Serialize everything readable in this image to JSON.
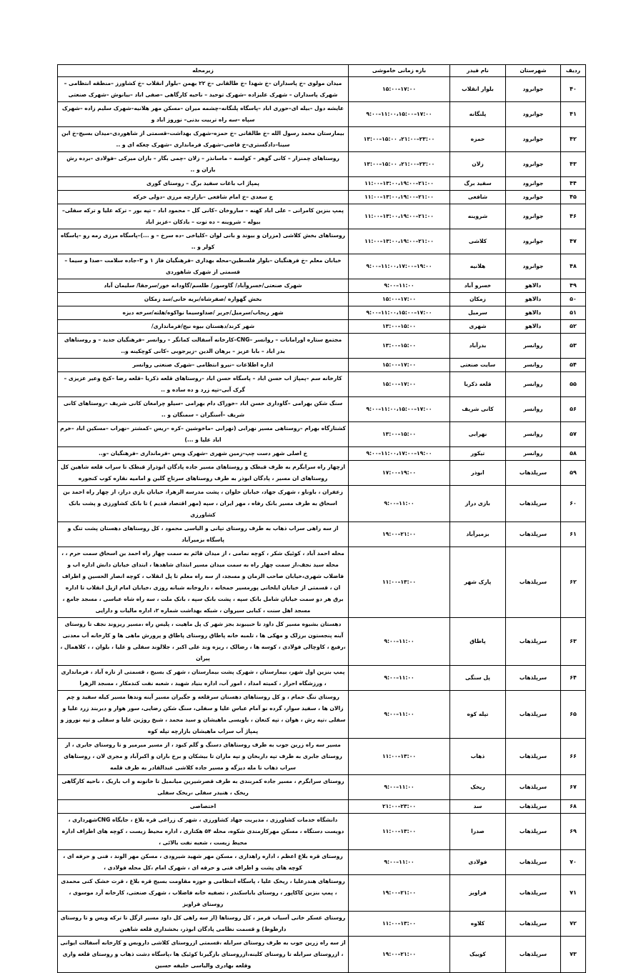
{
  "headers": {
    "index": "ردیف",
    "city": "شهرستان",
    "feeder": "نام فیدر",
    "time": "بازه زمانی خاموشی",
    "area": "زیرمحله"
  },
  "rows": [
    {
      "index": "۴۰",
      "city": "جوانرود",
      "feeder": "بلوار انقلاب",
      "time": "۱۵:۰۰–۱۷:۰۰",
      "area": "میدان مولوی –خ پاسداران –خ شهدا –خ طالقانی –خ ۲۲ بهمن –بلوار انقلاب –خ کشاورز –منطقه انتظامی –شهرک پاسداران – شهرک علیزاده –شهرک توحید – ناحیه کارگاهی –صفی اباد –بیانوش –شهرک صنعتی"
    },
    {
      "index": "۴۱",
      "city": "جوانرود",
      "feeder": "پلنگانه",
      "time": "۹:۰۰–۱۱:۰۰،۱۵:۰۰–۱۷:۰۰",
      "area": "عایشه دول –بیله ای–حوری اباد –پاسگاه پلنگانه–چشمه میران –مسکن مهر هلانیه–شهرک سلیم زاده –شهرک سپاه –سه راه تربیت بدنی– نوروز اباد و"
    },
    {
      "index": "۴۲",
      "city": "جوانرود",
      "feeder": "حمزه",
      "time": "۱۳:۰۰–۱۵:۰۰ ،۲۱:۰۰–۲۳:۰۰",
      "area": "بیمارستان محمد رسول الله –خ طالقانی –خ حمزه–شهرک بهداشت–قسمتی از شاهوردی–میدان بسیج–خ ابن سینا–دادگستری–خ قاضی–شهرک فرمانداری –شهرک چغکه ای و .."
    },
    {
      "index": "۴۳",
      "city": "جوانرود",
      "feeder": "زلان",
      "time": "۱۳:۰۰–۱۵:۰۰ ،۲۱:۰۰–۲۳:۰۰",
      "area": "روستاهای چمنزار – کانی گوهر – کولسه – ماسانذر – زلان –چمی بگار – بازان میرکی –فولادی –برده رش بازان و .."
    },
    {
      "index": "۴۴",
      "city": "جوانرود",
      "feeder": "سفید برگ",
      "time": "۱۱:۰۰–۱۳:۰۰،۱۹:۰۰–۲۱:۰۰",
      "area": "پمپاژ اب باغات سفید برگ – روستای گوری"
    },
    {
      "index": "۴۵",
      "city": "جوانرود",
      "feeder": "شافعی",
      "time": "۱۱:۰۰–۱۳:۰۰،۱۹:۰۰–۲۱:۰۰",
      "area": "خ سعدی –خ امام شافعی –بازارچه مرزی –دولی خرکه"
    },
    {
      "index": "۴۶",
      "city": "جوانرود",
      "feeder": "شروینه",
      "time": "۱۱:۰۰–۱۳:۰۰،۱۹:۰۰–۲۱:۰۰",
      "area": "پمپ بنزین کامرانی – علی اباد کهنه – ساروخان –کانی گل – محمود اباد – تپه بور – ترکه علیا و ترکه سفلی– بیوله – شروینه – ده توت – بادکان –عزیز اباد"
    },
    {
      "index": "۴۷",
      "city": "جوانرود",
      "feeder": "کلاشی",
      "time": "۱۱:۰۰–۱۳:۰۰،۱۹:۰۰–۲۱:۰۰",
      "area": "روستاهای بخش کلاشی (مزران و بیوند و بانی لوان –کلیاخی –ده سرخ – و ...)–پاسگاه مرزی رمه رو –پاسگاه کولر و .."
    },
    {
      "index": "۴۸",
      "city": "جوانرود",
      "feeder": "هلانیه",
      "time": "۹:۰۰–۱۱:۰۰،۱۷:۰۰–۱۹:۰۰",
      "area": "خیابان معلم –خ فرهنگیان –بلوار فلسطین–محله بهداری –فرهنگیان فاز ۱ و ۳–جاده سلامت –صدا و سیما –قسمتی از شهرک شاهوردی"
    },
    {
      "index": "۴۹",
      "city": "دالاهو",
      "feeder": "خسرو آباد",
      "time": "۹:۰۰–۱۱:۰۰",
      "area": "شهرک صنعتی/خسروآباد/ گاوسور/ طلسم/گاودانه خور/سرجقا/ سلیمان آباد"
    },
    {
      "index": "۵۰",
      "city": "دالاهو",
      "feeder": "زمکان",
      "time": "۱۵:۰۰–۱۷:۰۰",
      "area": "بخش گهواره /صفرشاه/بریه خانی/سد زمکان"
    },
    {
      "index": "۵۱",
      "city": "دالاهو",
      "feeder": "سرمیل",
      "time": "۹:۰۰–۱۱:۰۰،۱۵:۰۰–۱۷:۰۰",
      "area": "شهر ریجاب/سرمیل/جریر /صداوسیما نواکوه/هلته/سرخه دیزه"
    },
    {
      "index": "۵۲",
      "city": "دالاهو",
      "feeder": "شهری",
      "time": "۱۳:۰۰–۱۵:۰۰",
      "area": "شهر کرند/دهستان بیوه نیج/فرمانداری/"
    },
    {
      "index": "۵۳",
      "city": "روانسر",
      "feeder": "بدرآباد",
      "time": "۱۳:۰۰–۱۵:۰۰",
      "area": "مجتمع ستاره اورامانات – روانسر –CNG–کارخانه آسفالت کمانگر – روانسر –فرهنگیان جدید – و روستاهای بدر اباد – بابا عزیز – برهان الدین –زیرجوبی –کانی کوچکینه و.."
    },
    {
      "index": "۵۴",
      "city": "روانسر",
      "feeder": "سایت صنعتی",
      "time": "۱۵:۰۰–۱۷:۰۰",
      "area": "اداره اطلاعات –نیرو انتظامی –شهرک صنعتی روانسر"
    },
    {
      "index": "۵۵",
      "city": "روانسر",
      "feeder": "قلعه ذکریا",
      "time": "۱۵:۰۰–۱۷:۰۰",
      "area": "کارخانه سم –پمپاژ اب حسن اباد – پاسگاه حسن اباد –روستاهای قلعه ذکریا –قلعه رضا –کیخ وعیر عزیزی –گرک آبی–تپه زرد و ده ساده و .."
    },
    {
      "index": "۵۶",
      "city": "روانسر",
      "feeder": "کانی شریف",
      "time": "۹:۰۰–۱۱:۰۰،۱۵:۰۰–۱۷:۰۰",
      "area": "سنگ شکن بهرامی –گاوداری حسن اباد –خوراک دام بهرامی –سیلو چرامغان کانی شریف –روستاهای کانی شریف –آسنگران – سمنگان و .."
    },
    {
      "index": "۵۷",
      "city": "روانسر",
      "feeder": "نهرابی",
      "time": "۱۳:۰۰–۱۵:۰۰",
      "area": "کشتارگاه بهرام –روستاهی مسیر نهرابی (نهرابی –ماخوشین –کره –ریس –کمشتر –نهراب –مسکین اباد –خرم اباد علیا و ...)"
    },
    {
      "index": "۵۸",
      "city": "روانسر",
      "feeder": "تیکور",
      "time": "۹:۰۰–۱۱:۰۰،۱۷:۰۰–۱۹:۰۰",
      "area": "خ اصلی شهر دست چپ–زمین شهری –شهرک ویس –فرمانداری –فرهنگیان –و.."
    },
    {
      "index": "۵۹",
      "city": "سرپلذهاب",
      "feeder": "ابوذر",
      "time": "۱۷:۰۰–۱۹:۰۰",
      "area": "ازچهار راه سرابگرم به طرف قبطک و روستاهای مسیر جاده پادگان ابوذراز قبطک تا سراب قلعه شاهین کل روستاهای ان مسیر ، پادگان ابوذر به طرف روستاهای سرتاج گلین و امامیه نقاره کوب کنجوره"
    },
    {
      "index": "۶۰",
      "city": "سرپلذهاب",
      "feeder": "بازی دراز",
      "time": "۹:۰۰–۱۱:۰۰",
      "area": "زعفران ، باوناو ، شهرک جهاد، خیابان حلوان ، پشت مدرسه الزهرا، خیابان بازی دراز، از چهار راه احمد بن اسحاق به طرف مسیر بانک رفاه ، مهر ایران ، سپه (مهر اقتصاد قدیم ) تا بانک کشاورزی و پشت بانک کشاورزی"
    },
    {
      "index": "۶۱",
      "city": "سرپلذهاب",
      "feeder": "بزمیرآباد",
      "time": "۱۹:۰۰–۲۱:۰۰",
      "area": "از سه راهی سراب ذهاب به طرف روستای تپانی و الیاسی محمود ، کل روستاهای دهستان پشت تنگ و پاسگاه بزمیرآباد"
    },
    {
      "index": "۶۲",
      "city": "سرپلذهاب",
      "feeder": "پارک شهر",
      "time": "۱۱:۰۰–۱۳:۰۰",
      "area": "محله احمد آباد ، کوئیک شکر ، کوچه نمامی ، از میدان قائم به سمت چهار راه احمد بن اسحاق سمت حرم ، ، محله سید نجف،از سمت چهار راه به سمت میدان مسیر ابتدای شاهدها ، ابتدای خیابان دانش اداره اب و فاضلاب شهری،خیابان صاحب الزمان و مسجد، از سه راه معلم تا پل انقلاب ، کوچه انصار الحسین و اطراف ان ، قسمتی از خیابان ایلخانی پورمسیر جمخانه ، داروخانه شبانه روزی ،خیابان امام ازپل انقلاب تا اداره برق هر دو سمت خیابان شامل بانک سپه ، پشت بانک سپه ، بانک ملت ، سه راه شاه عباسی ، مسجد جامع ، مسجد اهل سنت ، کبابی سیروان ، شبکه بهداشت شماره ۲، اداره مالیات و دارایی"
    },
    {
      "index": "۶۳",
      "city": "سرپلذهاب",
      "feeder": "پاطاق",
      "time": "۹:۰۰–۱۱:۰۰",
      "area": "دهستان بشیوه مسیر کل داود تا حبیبوند بجز شهر ک پل ماهیت ، پلیس راه ،مسیر ریزوند نجف تا روستای آینه پنجستون برزلک و مهکی ها ، تلمبه خانه پاطاق روستای پاطاق و پرورش ماهی ها و کارخانه آب معدنی ،رفیع ، کاوچالی فولادی ، کوسه ها ، رضالک ، ریزه وند علی اکبر ، جلالوند سفلی و علیا ، بلوان ، ، کلاهمال ، پیران"
    },
    {
      "index": "۶۴",
      "city": "سرپلذهاب",
      "feeder": "پل سنگی",
      "time": "۹:۰۰–۱۱:۰۰",
      "area": "پمپ بنزین اول شهر، بیمارستان ، شهرک پشت بیمارستان ، شهر ک بسیج ، قسمتی از تازه آباد ، فرمانداری ، ورزشگاه احرار ، کمیته امداد ، امور آب، اداره بنیاد شهید ، شعبه نفت کندمکار ، مسجد الزهرا"
    },
    {
      "index": "۶۵",
      "city": "سرپلذهاب",
      "feeder": "تپله کوه",
      "time": "۹:۰۰–۱۱:۰۰",
      "area": "روستای تنگ حمام ، و کل روستاهای دهستان سرقلعه و جگیران مسیر آینه وندها مسیر کیله سفید و چم زالان ها ، سفید سوار، گرده نو آمام عباس علیا و سفلی، سنگ شکن رضایی، سور هوار و دیربند زرد علیا و سفلی ،تپه رش ، هوان ، تپه کنعان ، باویسی ماهیشان و سید محمد ، شیخ روژین علیا و سفلی و تپه نوروز و پمپاژ آب سراب ماهیشان بازارچه تپله کوه"
    },
    {
      "index": "۶۶",
      "city": "سرپلذهاب",
      "feeder": "ذهاب",
      "time": "۱۱:۰۰–۱۳:۰۰",
      "area": "مسیر سه راه زرین جوب به طرف روستاهای دسنگ و گلم کبود ، از مسیر میرمیر و تا روستای جابری ، از روستای جابری به طرف تپه داربخان و تپه ماران تا بیشکان و برخ باران و اکبرآباد و مجری لان ، روستاهای سراب ذهاب تا مله دیزگه و مسیر جاده کلاشی عبدالقادر به طرف قلمه"
    },
    {
      "index": "۶۷",
      "city": "سرپلذهاب",
      "feeder": "ریخک",
      "time": "۹:۰۰–۱۱:۰۰",
      "area": "روستای سرابگرم ، مسیر جاده کمربندی به طرف قصرشیرین میانمیل تا خانونه و اب باریک ، ناحیه کارگاهی ریخک ، هنیدر سفلی ،ریخک سفلی"
    },
    {
      "index": "۶۸",
      "city": "سرپلذهاب",
      "feeder": "سد",
      "time": "۲۱:۰۰–۲۳:۰۰",
      "area": "اختصاصی"
    },
    {
      "index": "۶۹",
      "city": "سرپلذهاب",
      "feeder": "صدرا",
      "time": "۱۱:۰۰–۱۳:۰۰",
      "area": "دانشگاه خدمات کشاورزی ، مدیریت جهاد کشاورزی ، شهر ک زراعی قره بلاغ ، جایگاه CNGشهرداری ، دویست دستگاه ، مسکن مهرکارمندی شکوه، محله ۵۴ هکتاری ، اداره محیط زیست ، کوچه های اطراف اداره محیط زیست ، شعبه نفت بالائی ،"
    },
    {
      "index": "۷۰",
      "city": "سرپلذهاب",
      "feeder": "فولادی",
      "time": "۹:۰۰–۱۱:۰۰",
      "area": "روستای قره بلاغ اعظم ، اداره راهداری ، مسکن مهر شهید شیرودی ، مسکن مهر الوند ، فنی و حرفه ای ، کوچه های پشت و اطراف فنی و حرفه ای ، شهرک امام ،کل محله فولادی ،"
    },
    {
      "index": "۷۱",
      "city": "سرپلذهاب",
      "feeder": "فراویز",
      "time": "۱۹:۰۰–۲۱:۰۰",
      "area": "روستاهای هندرعلیا ، ریخک علیا ، پاسگاه انتظامی و حوزه مقاومت بسیج قره بلاغ ، قرث خشک کنی محمدی ، پمپ بنزین کاکاپور ، روستای باباسکندر ، تصفیه خانه فاضلاب ، شهرک صنعتی، کارخانه آرد موسوی ، روستای فراویز"
    },
    {
      "index": "۷۲",
      "city": "سرپلذهاب",
      "feeder": "کلاوه",
      "time": "۱۱:۰۰–۱۳:۰۰",
      "area": "روستای عسکر خانی آسیاب قرمز ، کل روستاها (از سه راهی کل داود مسیر ازگل تا ترکه ویس و تا روستای دارطوط) و قسمت نظامی پادگان ابوذر، بخشداری قلعه شاهین"
    },
    {
      "index": "۷۳",
      "city": "سرپلذهاب",
      "feeder": "کوییک",
      "time": "۱۹:۰۰–۲۱:۰۰",
      "area": "از سه راه زرین جوب به طرف روستای سرابله ،قسمتی ازروستای کلاشی داروبس و کارخانه آسفالت ایوانی ، ازروستای سرابله تا روستای کلینه،ازروستای بازگیرتا کوئیک ها ،پاسگاه دشت ذهاب و روستای قلعه واری وقلعه بهادری والیاسی خلیفه حسین"
    }
  ]
}
